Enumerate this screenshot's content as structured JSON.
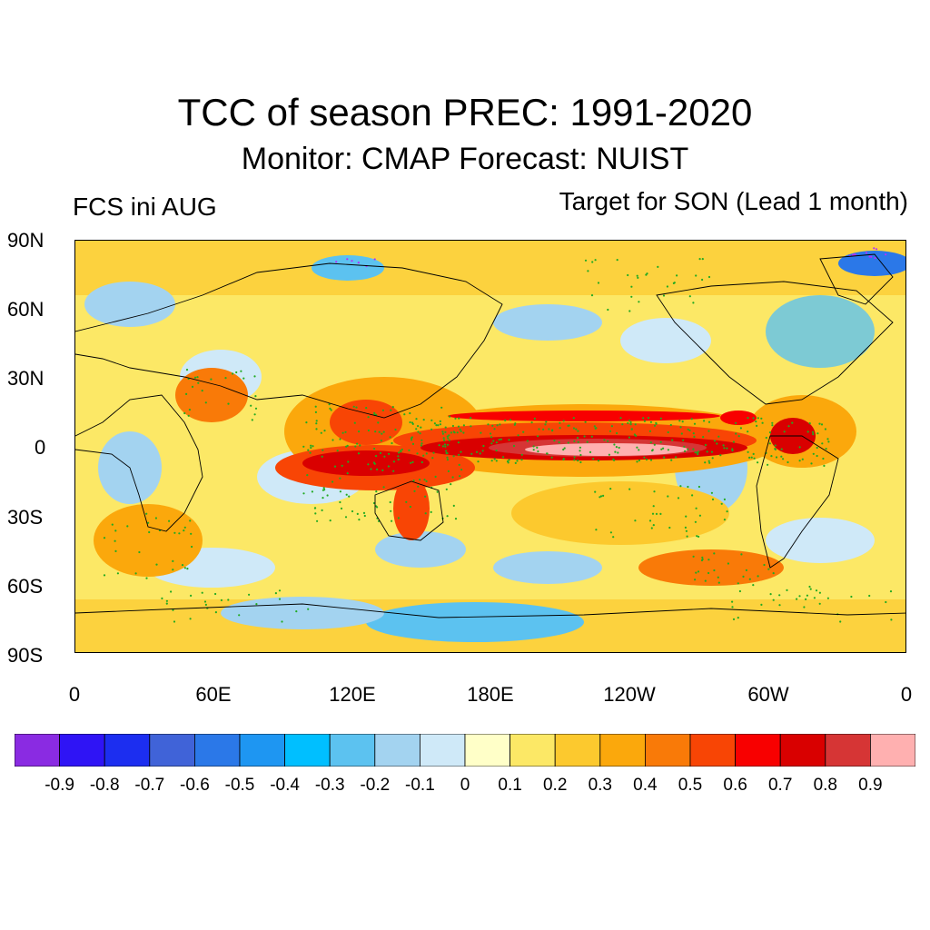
{
  "title": "TCC of season PREC: 1991-2020",
  "subtitle": "Monitor: CMAP   Forecast: NUIST",
  "left_label": "FCS ini AUG",
  "right_label": "Target for SON (Lead 1 month)",
  "lat_labels": [
    "90N",
    "60N",
    "30N",
    "0",
    "30S",
    "60S",
    "90S"
  ],
  "lon_labels": [
    "0",
    "60E",
    "120E",
    "180E",
    "120W",
    "60W",
    "0"
  ],
  "colorbar": {
    "labels": [
      "-0.9",
      "-0.8",
      "-0.7",
      "-0.6",
      "-0.5",
      "-0.4",
      "-0.3",
      "-0.2",
      "-0.1",
      "0",
      "0.1",
      "0.2",
      "0.3",
      "0.4",
      "0.5",
      "0.6",
      "0.7",
      "0.8",
      "0.9"
    ],
    "colors": [
      "#8a2be2",
      "#2f14f5",
      "#1c2ef0",
      "#4063d8",
      "#2b78e8",
      "#1e96f2",
      "#00bfff",
      "#5cc2f0",
      "#a3d3f0",
      "#cfe9f8",
      "#ffffc8",
      "#fce866",
      "#fcc92e",
      "#fba80c",
      "#f97a08",
      "#f84505",
      "#f80000",
      "#d90000",
      "#d63535",
      "#ffb0b0"
    ]
  },
  "colors": {
    "stipple_significant": "#22aa22",
    "stipple_negative": "#b030ff"
  }
}
